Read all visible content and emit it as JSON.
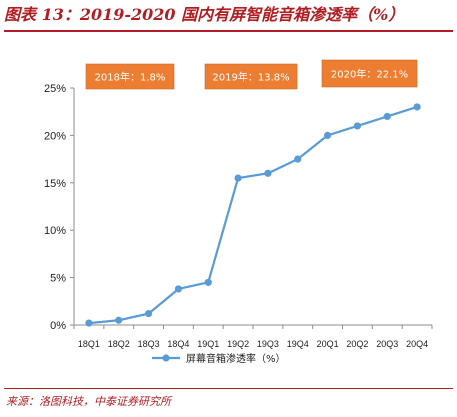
{
  "figure": {
    "title": "图表 13：2019-2020 国内有屏智能音箱渗透率（%）",
    "source": "来源：洛图科技，中泰证券研究所"
  },
  "chart_data": {
    "type": "line",
    "categories": [
      "18Q1",
      "18Q2",
      "18Q3",
      "18Q4",
      "19Q1",
      "19Q2",
      "19Q3",
      "19Q4",
      "20Q1",
      "20Q2",
      "20Q3",
      "20Q4"
    ],
    "series": [
      {
        "name": "屏幕音箱渗透率（%）",
        "values": [
          0.2,
          0.5,
          1.2,
          3.8,
          4.5,
          15.5,
          16.0,
          17.5,
          20.0,
          21.0,
          22.0,
          23.0
        ],
        "color": "#5b9bd5"
      }
    ],
    "ylim": [
      0,
      25
    ],
    "yticks": [
      "0%",
      "5%",
      "10%",
      "15%",
      "20%",
      "25%"
    ],
    "grid": false,
    "legend": "bottom",
    "annotations": [
      {
        "text": "2018年：1.8%",
        "color": "#ed7d31"
      },
      {
        "text": "2019年：13.8%",
        "color": "#ed7d31"
      },
      {
        "text": "2020年：22.1%",
        "color": "#ed7d31"
      }
    ]
  }
}
